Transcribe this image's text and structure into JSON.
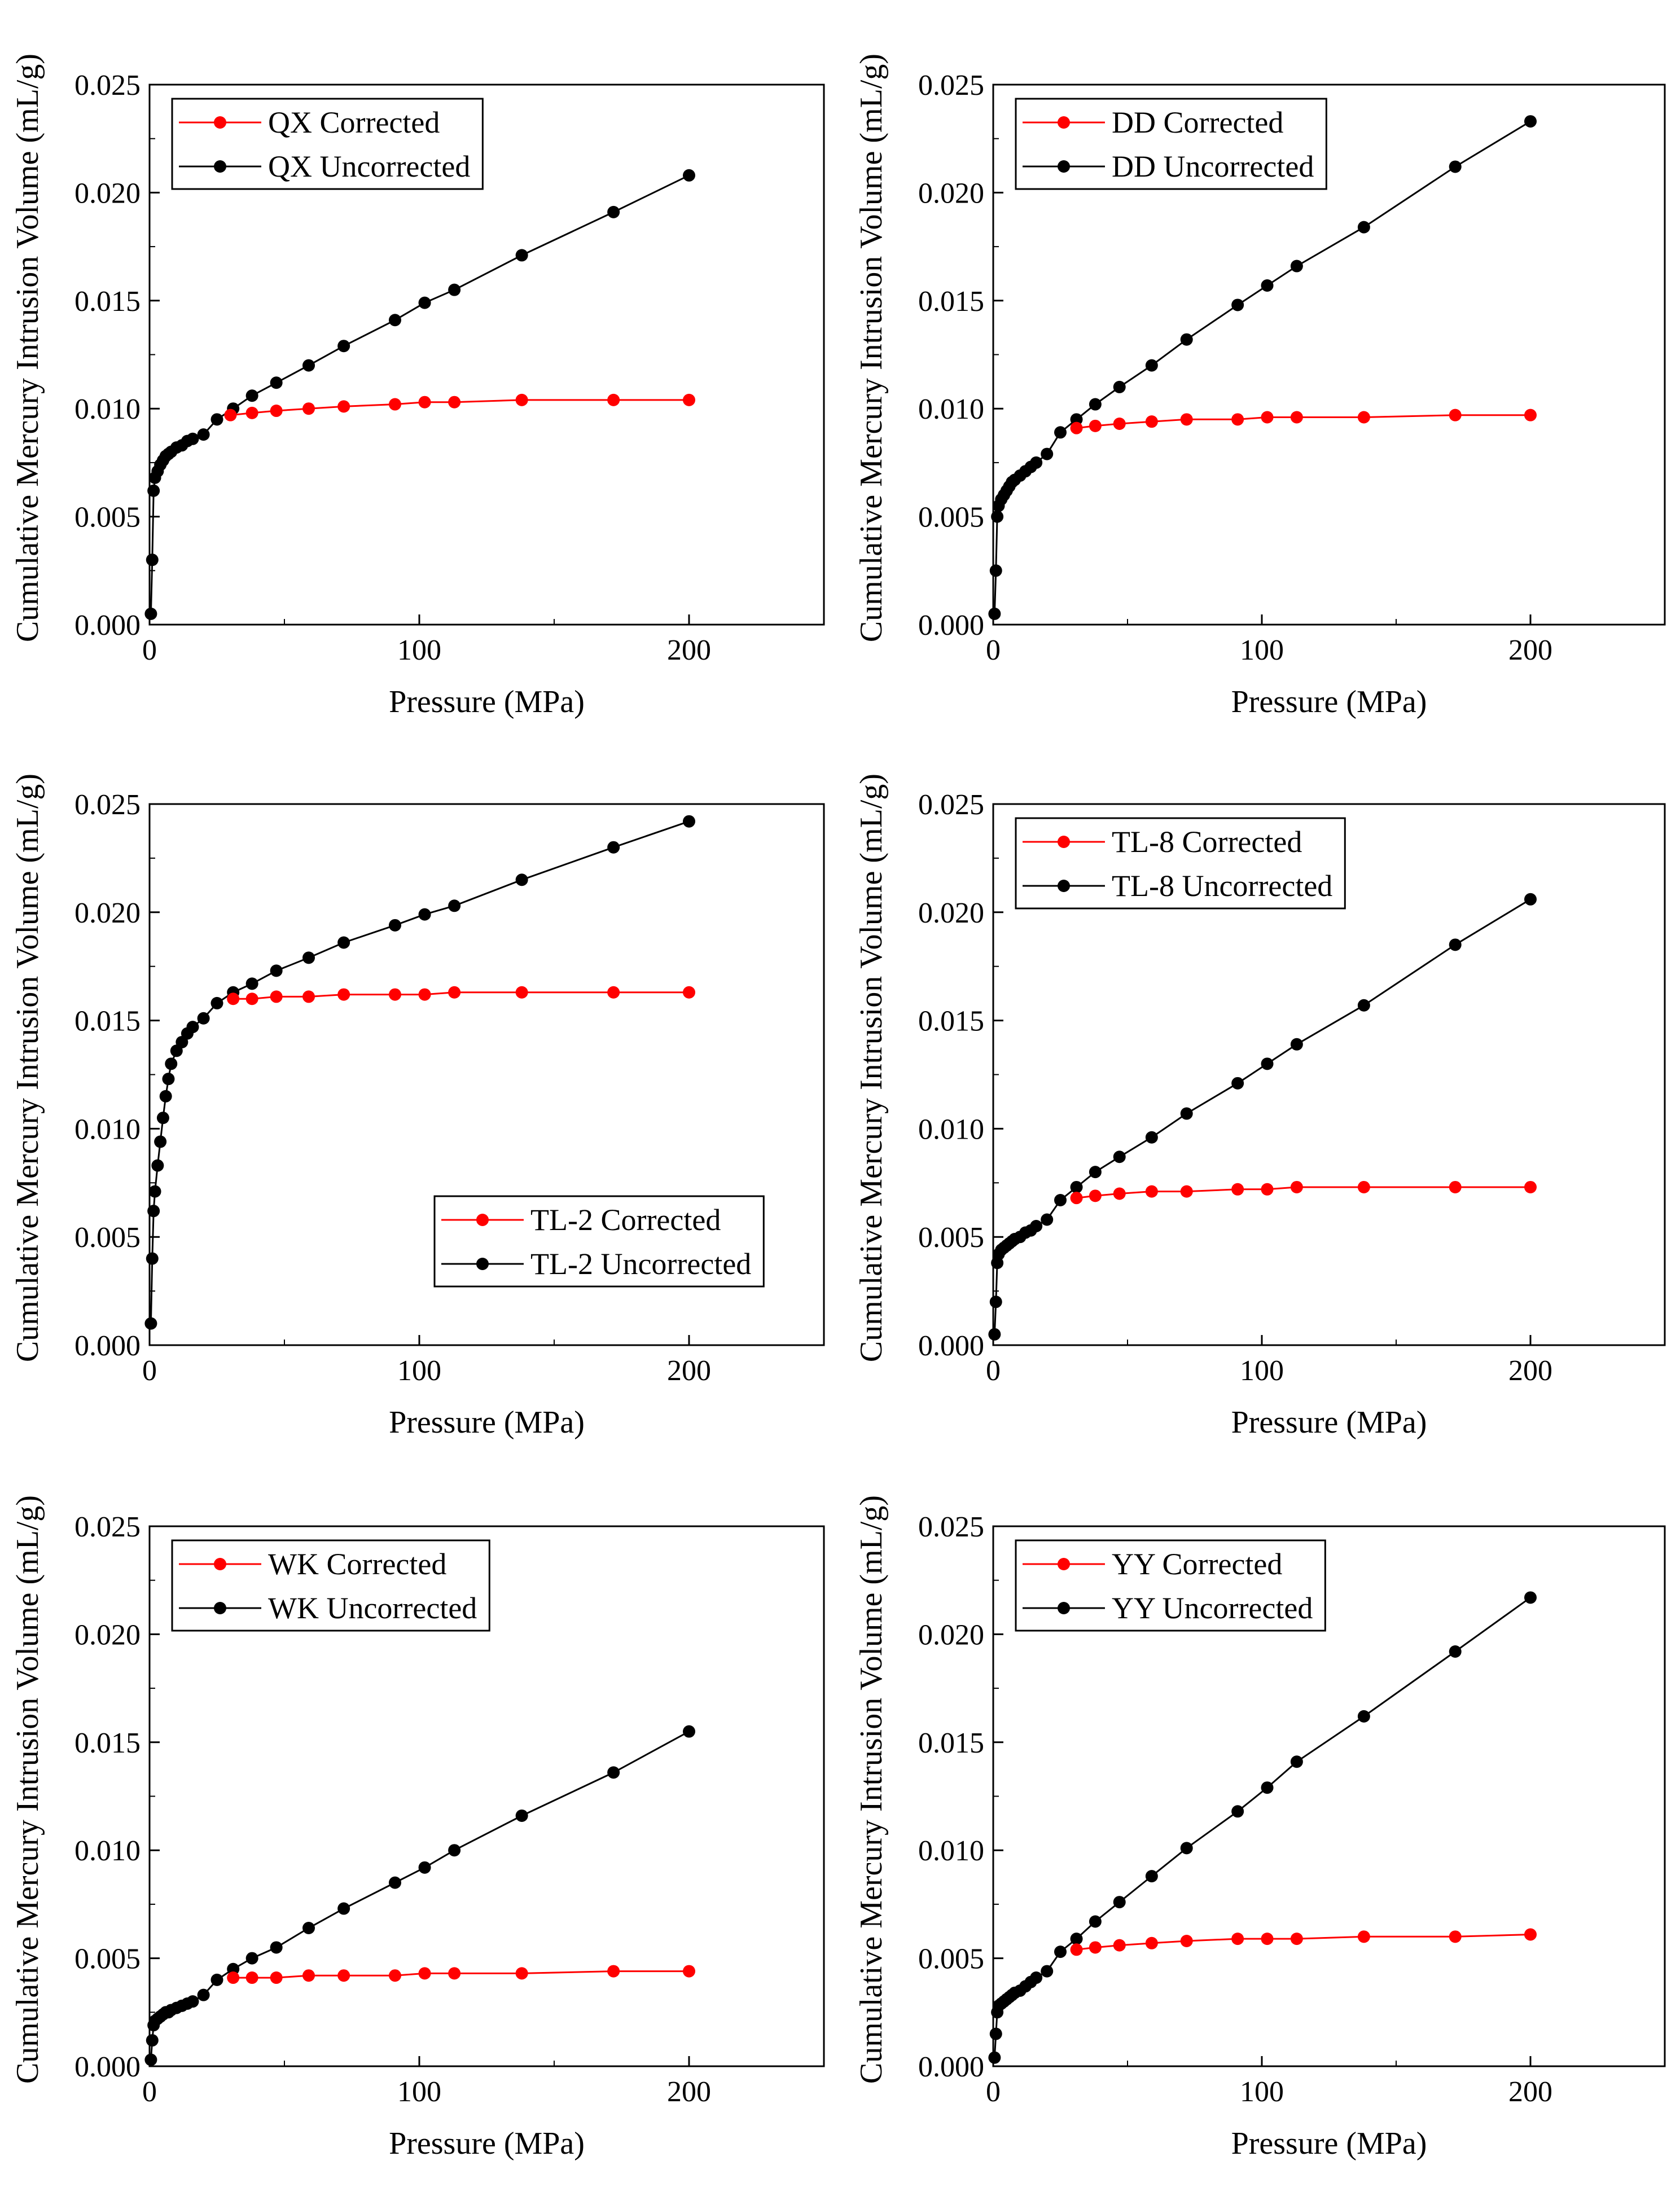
{
  "panels": [
    {
      "id": "QX",
      "xlabel": "Pressure (MPa)",
      "ylabel": "Cumulative Mercury Intrusion Volume (mL/g)",
      "xlim": [
        0,
        250
      ],
      "ylim": [
        0,
        0.025
      ],
      "xticks": [
        {
          "v": 0,
          "label": "0"
        },
        {
          "v": 100,
          "label": "100"
        },
        {
          "v": 200,
          "label": "200"
        }
      ],
      "yticks": [
        {
          "v": 0,
          "label": "0.000"
        },
        {
          "v": 0.005,
          "label": "0.005"
        },
        {
          "v": 0.01,
          "label": "0.010"
        },
        {
          "v": 0.015,
          "label": "0.015"
        },
        {
          "v": 0.02,
          "label": "0.020"
        },
        {
          "v": 0.025,
          "label": "0.025"
        }
      ],
      "legend_position": "top-left",
      "series": [
        {
          "name": "QX Corrected",
          "color": "#ff0000",
          "x": [
            30,
            38,
            47,
            59,
            72,
            91,
            102,
            113,
            138,
            172,
            200
          ],
          "y": [
            0.0097,
            0.0098,
            0.0099,
            0.01,
            0.0101,
            0.0102,
            0.0103,
            0.0103,
            0.0104,
            0.0104,
            0.0104
          ]
        },
        {
          "name": "QX Uncorrected",
          "color": "#000000",
          "x": [
            0.5,
            1,
            1.5,
            2,
            3,
            4,
            5,
            6,
            7,
            8,
            10,
            12,
            14,
            16,
            20,
            25,
            31,
            38,
            47,
            59,
            72,
            91,
            102,
            113,
            138,
            172,
            200
          ],
          "y": [
            0.0005,
            0.003,
            0.0062,
            0.0068,
            0.0071,
            0.0074,
            0.0076,
            0.0078,
            0.0079,
            0.008,
            0.0082,
            0.0083,
            0.0085,
            0.0086,
            0.0088,
            0.0095,
            0.01,
            0.0106,
            0.0112,
            0.012,
            0.0129,
            0.0141,
            0.0149,
            0.0155,
            0.0171,
            0.0191,
            0.0208
          ]
        }
      ]
    },
    {
      "id": "DD",
      "xlabel": "Pressure (MPa)",
      "ylabel": "Cumulative Mercury Intrusion Volume (mL/g)",
      "xlim": [
        0,
        250
      ],
      "ylim": [
        0,
        0.025
      ],
      "xticks": [
        {
          "v": 0,
          "label": "0"
        },
        {
          "v": 100,
          "label": "100"
        },
        {
          "v": 200,
          "label": "200"
        }
      ],
      "yticks": [
        {
          "v": 0,
          "label": "0.000"
        },
        {
          "v": 0.005,
          "label": "0.005"
        },
        {
          "v": 0.01,
          "label": "0.010"
        },
        {
          "v": 0.015,
          "label": "0.015"
        },
        {
          "v": 0.02,
          "label": "0.020"
        },
        {
          "v": 0.025,
          "label": "0.025"
        }
      ],
      "legend_position": "top-left",
      "series": [
        {
          "name": "DD Corrected",
          "color": "#ff0000",
          "x": [
            31,
            38,
            47,
            59,
            72,
            91,
            102,
            113,
            138,
            172,
            200
          ],
          "y": [
            0.0091,
            0.0092,
            0.0093,
            0.0094,
            0.0095,
            0.0095,
            0.0096,
            0.0096,
            0.0096,
            0.0097,
            0.0097
          ]
        },
        {
          "name": "DD Uncorrected",
          "color": "#000000",
          "x": [
            0.5,
            1,
            1.5,
            2,
            3,
            4,
            5,
            6,
            7,
            8,
            10,
            12,
            14,
            16,
            20,
            25,
            31,
            38,
            47,
            59,
            72,
            91,
            102,
            113,
            138,
            172,
            200
          ],
          "y": [
            0.0005,
            0.0025,
            0.005,
            0.0055,
            0.0058,
            0.006,
            0.0062,
            0.0064,
            0.0066,
            0.0067,
            0.0069,
            0.0071,
            0.0073,
            0.0075,
            0.0079,
            0.0089,
            0.0095,
            0.0102,
            0.011,
            0.012,
            0.0132,
            0.0148,
            0.0157,
            0.0166,
            0.0184,
            0.0212,
            0.0233
          ]
        }
      ]
    },
    {
      "id": "TL-2",
      "xlabel": "Pressure (MPa)",
      "ylabel": "Cumulative Mercury Intrusion Volume (mL/g)",
      "xlim": [
        0,
        250
      ],
      "ylim": [
        0,
        0.025
      ],
      "xticks": [
        {
          "v": 0,
          "label": "0"
        },
        {
          "v": 100,
          "label": "100"
        },
        {
          "v": 200,
          "label": "200"
        }
      ],
      "yticks": [
        {
          "v": 0,
          "label": "0.000"
        },
        {
          "v": 0.005,
          "label": "0.005"
        },
        {
          "v": 0.01,
          "label": "0.010"
        },
        {
          "v": 0.015,
          "label": "0.015"
        },
        {
          "v": 0.02,
          "label": "0.020"
        },
        {
          "v": 0.025,
          "label": "0.025"
        }
      ],
      "legend_position": "bottom-right",
      "series": [
        {
          "name": "TL-2 Corrected",
          "color": "#ff0000",
          "x": [
            31,
            38,
            47,
            59,
            72,
            91,
            102,
            113,
            138,
            172,
            200
          ],
          "y": [
            0.016,
            0.016,
            0.0161,
            0.0161,
            0.0162,
            0.0162,
            0.0162,
            0.0163,
            0.0163,
            0.0163,
            0.0163
          ]
        },
        {
          "name": "TL-2 Uncorrected",
          "color": "#000000",
          "x": [
            0.5,
            1,
            1.5,
            2,
            3,
            4,
            5,
            6,
            7,
            8,
            10,
            12,
            14,
            16,
            20,
            25,
            31,
            38,
            47,
            59,
            72,
            91,
            102,
            113,
            138,
            172,
            200
          ],
          "y": [
            0.001,
            0.004,
            0.0062,
            0.0071,
            0.0083,
            0.0094,
            0.0105,
            0.0115,
            0.0123,
            0.013,
            0.0136,
            0.014,
            0.0144,
            0.0147,
            0.0151,
            0.0158,
            0.0163,
            0.0167,
            0.0173,
            0.0179,
            0.0186,
            0.0194,
            0.0199,
            0.0203,
            0.0215,
            0.023,
            0.0242
          ]
        }
      ]
    },
    {
      "id": "TL-8",
      "xlabel": "Pressure (MPa)",
      "ylabel": "Cumulative Mercury Intrusion Volume (mL/g)",
      "xlim": [
        0,
        250
      ],
      "ylim": [
        0,
        0.025
      ],
      "xticks": [
        {
          "v": 0,
          "label": "0"
        },
        {
          "v": 100,
          "label": "100"
        },
        {
          "v": 200,
          "label": "200"
        }
      ],
      "yticks": [
        {
          "v": 0,
          "label": "0.000"
        },
        {
          "v": 0.005,
          "label": "0.005"
        },
        {
          "v": 0.01,
          "label": "0.010"
        },
        {
          "v": 0.015,
          "label": "0.015"
        },
        {
          "v": 0.02,
          "label": "0.020"
        },
        {
          "v": 0.025,
          "label": "0.025"
        }
      ],
      "legend_position": "top-left",
      "series": [
        {
          "name": "TL-8 Corrected",
          "color": "#ff0000",
          "x": [
            31,
            38,
            47,
            59,
            72,
            91,
            102,
            113,
            138,
            172,
            200
          ],
          "y": [
            0.0068,
            0.0069,
            0.007,
            0.0071,
            0.0071,
            0.0072,
            0.0072,
            0.0073,
            0.0073,
            0.0073,
            0.0073
          ]
        },
        {
          "name": "TL-8 Uncorrected",
          "color": "#000000",
          "x": [
            0.5,
            1,
            1.5,
            2,
            3,
            4,
            5,
            6,
            7,
            8,
            10,
            12,
            14,
            16,
            20,
            25,
            31,
            38,
            47,
            59,
            72,
            91,
            102,
            113,
            138,
            172,
            200
          ],
          "y": [
            0.0005,
            0.002,
            0.0038,
            0.0042,
            0.0044,
            0.0045,
            0.0046,
            0.0047,
            0.0048,
            0.0049,
            0.005,
            0.0052,
            0.0053,
            0.0055,
            0.0058,
            0.0067,
            0.0073,
            0.008,
            0.0087,
            0.0096,
            0.0107,
            0.0121,
            0.013,
            0.0139,
            0.0157,
            0.0185,
            0.0206
          ]
        }
      ]
    },
    {
      "id": "WK",
      "xlabel": "Pressure (MPa)",
      "ylabel": "Cumulative Mercury Intrusion Volume (mL/g)",
      "xlim": [
        0,
        250
      ],
      "ylim": [
        0,
        0.025
      ],
      "xticks": [
        {
          "v": 0,
          "label": "0"
        },
        {
          "v": 100,
          "label": "100"
        },
        {
          "v": 200,
          "label": "200"
        }
      ],
      "yticks": [
        {
          "v": 0,
          "label": "0.000"
        },
        {
          "v": 0.005,
          "label": "0.005"
        },
        {
          "v": 0.01,
          "label": "0.010"
        },
        {
          "v": 0.015,
          "label": "0.015"
        },
        {
          "v": 0.02,
          "label": "0.020"
        },
        {
          "v": 0.025,
          "label": "0.025"
        }
      ],
      "legend_position": "top-left",
      "series": [
        {
          "name": "WK Corrected",
          "color": "#ff0000",
          "x": [
            31,
            38,
            47,
            59,
            72,
            91,
            102,
            113,
            138,
            172,
            200
          ],
          "y": [
            0.0041,
            0.0041,
            0.0041,
            0.0042,
            0.0042,
            0.0042,
            0.0043,
            0.0043,
            0.0043,
            0.0044,
            0.0044
          ]
        },
        {
          "name": "WK Uncorrected",
          "color": "#000000",
          "x": [
            0.5,
            1,
            1.5,
            2,
            3,
            4,
            5,
            6,
            7,
            8,
            10,
            12,
            14,
            16,
            20,
            25,
            31,
            38,
            47,
            59,
            72,
            91,
            102,
            113,
            138,
            172,
            200
          ],
          "y": [
            0.0003,
            0.0012,
            0.0019,
            0.0021,
            0.0022,
            0.0023,
            0.0024,
            0.0025,
            0.0025,
            0.0026,
            0.0027,
            0.0028,
            0.0029,
            0.003,
            0.0033,
            0.004,
            0.0045,
            0.005,
            0.0055,
            0.0064,
            0.0073,
            0.0085,
            0.0092,
            0.01,
            0.0116,
            0.0136,
            0.0155
          ]
        }
      ]
    },
    {
      "id": "YY",
      "xlabel": "Pressure (MPa)",
      "ylabel": "Cumulative Mercury Intrusion Volume (mL/g)",
      "xlim": [
        0,
        250
      ],
      "ylim": [
        0,
        0.025
      ],
      "xticks": [
        {
          "v": 0,
          "label": "0"
        },
        {
          "v": 100,
          "label": "100"
        },
        {
          "v": 200,
          "label": "200"
        }
      ],
      "yticks": [
        {
          "v": 0,
          "label": "0.000"
        },
        {
          "v": 0.005,
          "label": "0.005"
        },
        {
          "v": 0.01,
          "label": "0.010"
        },
        {
          "v": 0.015,
          "label": "0.015"
        },
        {
          "v": 0.02,
          "label": "0.020"
        },
        {
          "v": 0.025,
          "label": "0.025"
        }
      ],
      "legend_position": "top-left",
      "series": [
        {
          "name": "YY Corrected",
          "color": "#ff0000",
          "x": [
            31,
            38,
            47,
            59,
            72,
            91,
            102,
            113,
            138,
            172,
            200
          ],
          "y": [
            0.0054,
            0.0055,
            0.0056,
            0.0057,
            0.0058,
            0.0059,
            0.0059,
            0.0059,
            0.006,
            0.006,
            0.0061
          ]
        },
        {
          "name": "YY Uncorrected",
          "color": "#000000",
          "x": [
            0.5,
            1,
            1.5,
            2,
            3,
            4,
            5,
            6,
            7,
            8,
            10,
            12,
            14,
            16,
            20,
            25,
            31,
            38,
            47,
            59,
            72,
            91,
            102,
            113,
            138,
            172,
            200
          ],
          "y": [
            0.0004,
            0.0015,
            0.0025,
            0.0028,
            0.0029,
            0.003,
            0.0031,
            0.0032,
            0.0033,
            0.0034,
            0.0035,
            0.0037,
            0.0039,
            0.0041,
            0.0044,
            0.0053,
            0.0059,
            0.0067,
            0.0076,
            0.0088,
            0.0101,
            0.0118,
            0.0129,
            0.0141,
            0.0162,
            0.0192,
            0.0217
          ]
        }
      ]
    }
  ]
}
